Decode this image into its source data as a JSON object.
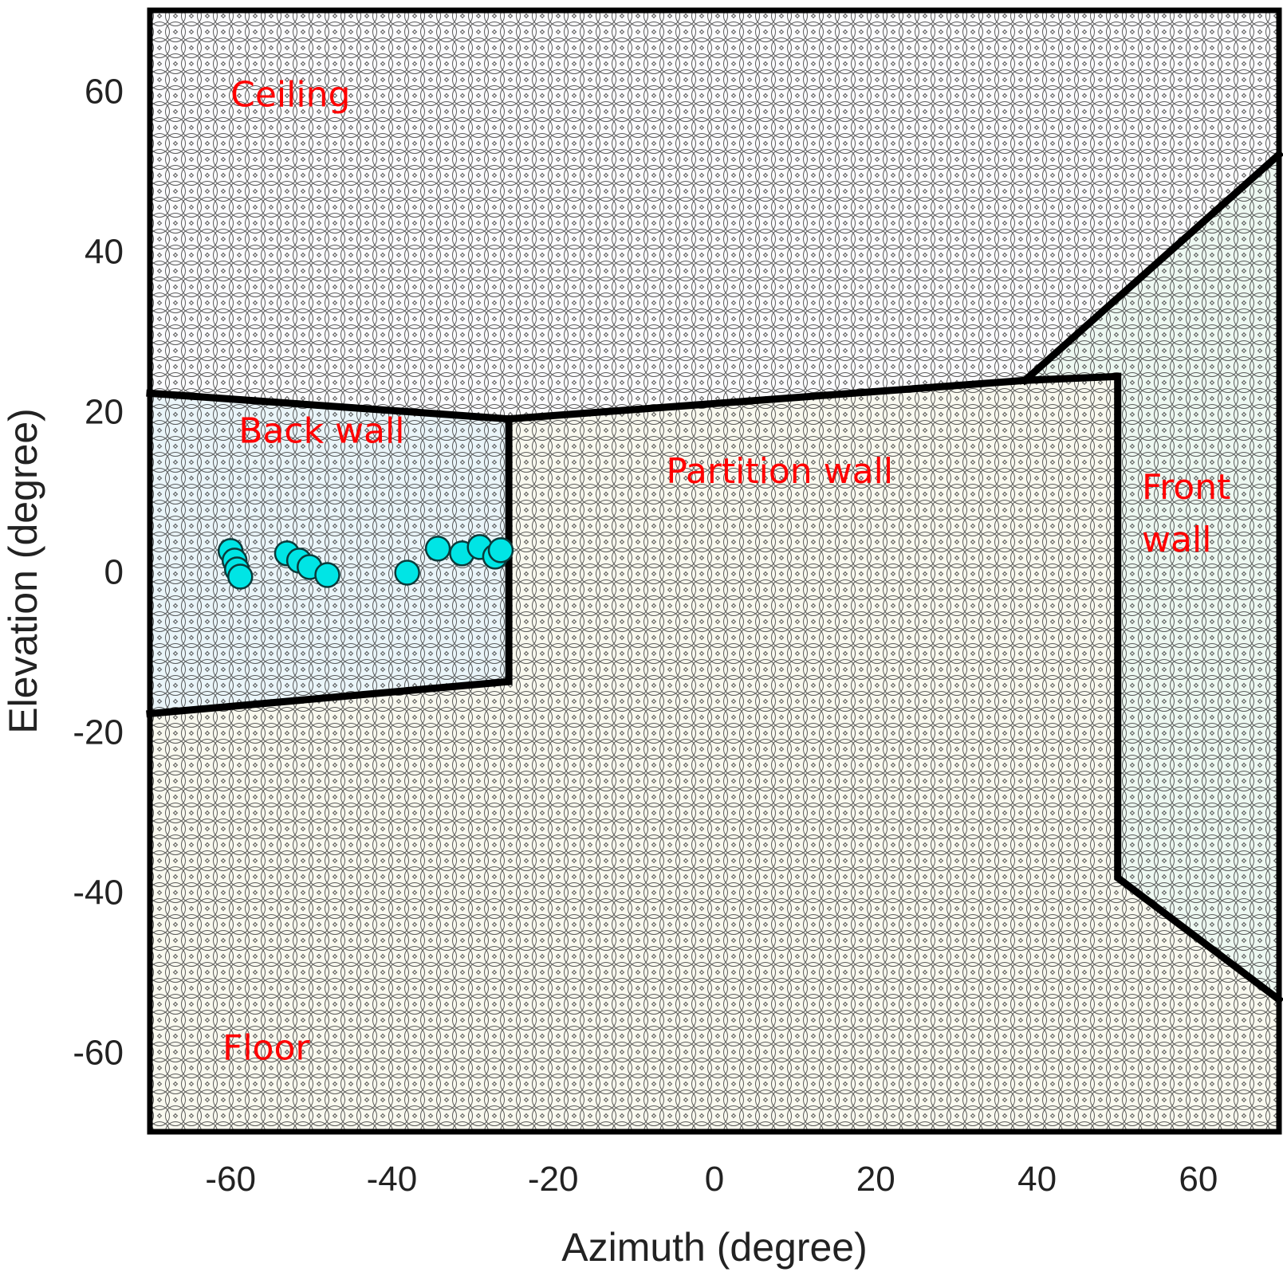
{
  "chart_data": {
    "type": "scatter",
    "xlabel": "Azimuth (degree)",
    "ylabel": "Elevation (degree)",
    "xlim": [
      -70,
      70
    ],
    "ylim": [
      -70,
      70
    ],
    "xticks": [
      -60,
      -40,
      -20,
      0,
      20,
      40,
      60
    ],
    "yticks": [
      60,
      40,
      20,
      0,
      -20,
      -40,
      -60
    ],
    "grid": false,
    "background_pattern": "overlapping circles",
    "regions": [
      {
        "name": "Ceiling",
        "label": "Ceiling",
        "color": "#fbfbfd",
        "polygon": [
          [
            -70,
            70
          ],
          [
            70,
            70
          ],
          [
            70,
            52
          ],
          [
            38.5,
            23.8
          ],
          [
            50,
            24.3
          ],
          [
            -25.5,
            19
          ],
          [
            -70,
            22.2
          ]
        ]
      },
      {
        "name": "Back wall",
        "label": "Back wall",
        "color": "#eaf5f9",
        "polygon": [
          [
            -70,
            22.2
          ],
          [
            -25.5,
            19
          ],
          [
            -25.5,
            -13.8
          ],
          [
            -70,
            -17.8
          ]
        ]
      },
      {
        "name": "Partition wall",
        "label": "Partition wall",
        "color": "#f9f9ef",
        "polygon": [
          [
            -25.5,
            19
          ],
          [
            38.5,
            23.8
          ],
          [
            50,
            24.3
          ],
          [
            50,
            -38.3
          ],
          [
            70,
            -53.5
          ],
          [
            70,
            -70
          ],
          [
            -70,
            -70
          ],
          [
            -70,
            -17.8
          ],
          [
            -25.5,
            -13.8
          ]
        ]
      },
      {
        "name": "Front wall",
        "label_lines": [
          "Front",
          "wall"
        ],
        "color": "#edf8f1",
        "polygon": [
          [
            38.5,
            23.8
          ],
          [
            70,
            52
          ],
          [
            70,
            -53.5
          ],
          [
            50,
            -38.3
          ],
          [
            50,
            24.3
          ]
        ]
      },
      {
        "name": "Floor",
        "label": "Floor"
      }
    ],
    "edges": [
      [
        [
          -70,
          22.2
        ],
        [
          -25.5,
          19
        ],
        [
          38.5,
          23.8
        ],
        [
          50,
          24.3
        ],
        [
          50,
          -38.3
        ],
        [
          70,
          -53.5
        ]
      ],
      [
        [
          -25.5,
          19
        ],
        [
          -25.5,
          -13.8
        ],
        [
          -70,
          -17.8
        ]
      ],
      [
        [
          38.5,
          23.8
        ],
        [
          70,
          52
        ]
      ]
    ],
    "series": [
      {
        "color": "#00e5e5",
        "points": [
          [
            -60,
            2.5
          ],
          [
            -59.5,
            1.3
          ],
          [
            -59.2,
            0.2
          ],
          [
            -58.8,
            -0.7
          ],
          [
            -53,
            2.2
          ],
          [
            -51.5,
            1.3
          ],
          [
            -50.2,
            0.5
          ],
          [
            -48,
            -0.5
          ],
          [
            -38.1,
            -0.2
          ],
          [
            -34.3,
            2.8
          ],
          [
            -31.3,
            2.2
          ],
          [
            -29.1,
            3.0
          ],
          [
            -27.2,
            1.8
          ],
          [
            -26.5,
            2.6
          ]
        ]
      }
    ],
    "label_anchors": {
      "Ceiling": [
        -60,
        58
      ],
      "Back wall": [
        -59,
        16
      ],
      "Partition wall": [
        -6,
        11
      ],
      "Front wall": [
        53,
        9
      ],
      "Floor": [
        -61,
        -61
      ]
    }
  }
}
